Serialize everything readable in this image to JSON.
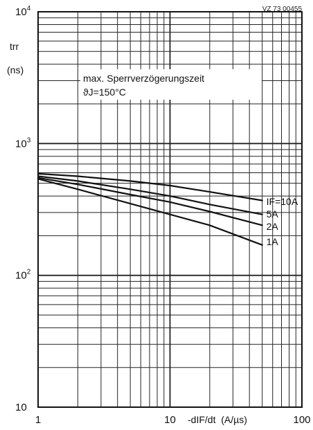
{
  "chart_data": {
    "type": "line",
    "title": "",
    "figure_code": "VZ 73 00455",
    "annotation_line1": "max. Sperrverzögerungszeit",
    "annotation_line2": "ϑJ=150°C",
    "ylabel_line1": "trr",
    "ylabel_line2": "(ns)",
    "xlabel": "-dIF/dt  (A/µs)",
    "x_scale": "log",
    "y_scale": "log",
    "xlim": [
      1,
      100
    ],
    "ylim": [
      10,
      10000
    ],
    "x_ticks": [
      {
        "value": 1,
        "label": "1"
      },
      {
        "value": 10,
        "label": "10"
      },
      {
        "value": 100,
        "label": "100"
      }
    ],
    "y_ticks": [
      {
        "value": 10,
        "base": "10",
        "exp": ""
      },
      {
        "value": 100,
        "base": "10",
        "exp": "2"
      },
      {
        "value": 1000,
        "base": "10",
        "exp": "3"
      },
      {
        "value": 10000,
        "base": "10",
        "exp": "4"
      }
    ],
    "grid": true,
    "series": [
      {
        "name": "IF=10A",
        "points": [
          [
            1,
            590
          ],
          [
            2,
            565
          ],
          [
            5,
            520
          ],
          [
            10,
            480
          ],
          [
            20,
            430
          ],
          [
            50,
            370
          ]
        ]
      },
      {
        "name": "5A",
        "points": [
          [
            1,
            565
          ],
          [
            2,
            520
          ],
          [
            5,
            450
          ],
          [
            10,
            400
          ],
          [
            20,
            345
          ],
          [
            50,
            290
          ]
        ]
      },
      {
        "name": "2A",
        "points": [
          [
            1,
            550
          ],
          [
            2,
            490
          ],
          [
            5,
            410
          ],
          [
            10,
            360
          ],
          [
            20,
            305
          ],
          [
            50,
            240
          ]
        ]
      },
      {
        "name": "1A",
        "points": [
          [
            1,
            540
          ],
          [
            2,
            450
          ],
          [
            5,
            350
          ],
          [
            10,
            290
          ],
          [
            20,
            240
          ],
          [
            50,
            170
          ]
        ]
      }
    ]
  }
}
